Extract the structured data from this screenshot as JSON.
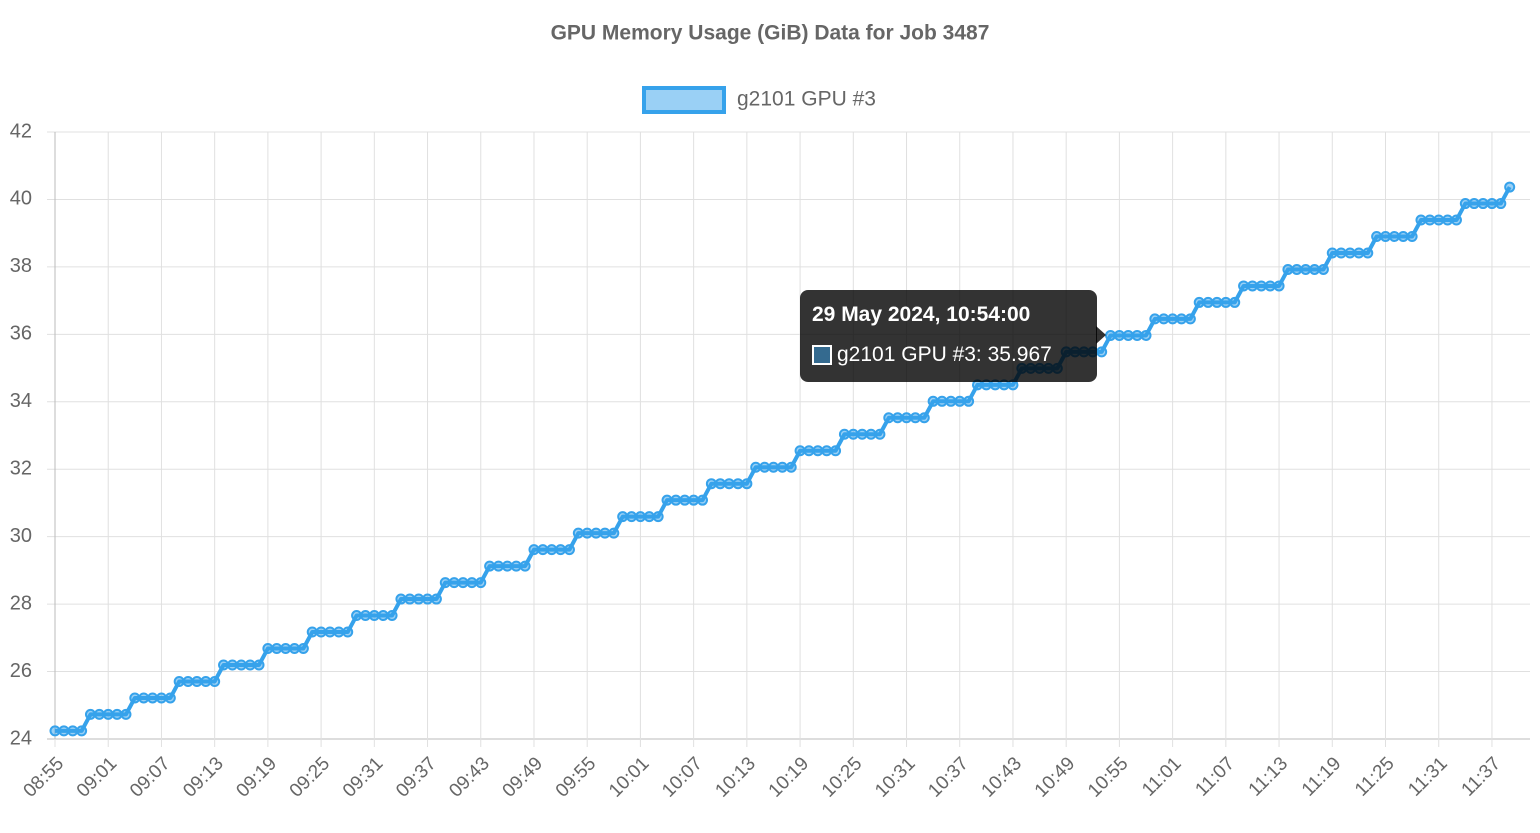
{
  "chart_data": {
    "type": "line",
    "title": "GPU Memory Usage (GiB) Data for Job 3487",
    "categories": [
      "08:55",
      null,
      null,
      null,
      null,
      null,
      "09:01",
      null,
      null,
      null,
      null,
      null,
      "09:07",
      null,
      null,
      null,
      null,
      null,
      "09:13",
      null,
      null,
      null,
      null,
      null,
      "09:19",
      null,
      null,
      null,
      null,
      null,
      "09:25",
      null,
      null,
      null,
      null,
      null,
      "09:31",
      null,
      null,
      null,
      null,
      null,
      "09:37",
      null,
      null,
      null,
      null,
      null,
      "09:43",
      null,
      null,
      null,
      null,
      null,
      "09:49",
      null,
      null,
      null,
      null,
      null,
      "09:55",
      null,
      null,
      null,
      null,
      null,
      "10:01",
      null,
      null,
      null,
      null,
      null,
      "10:07",
      null,
      null,
      null,
      null,
      null,
      "10:13",
      null,
      null,
      null,
      null,
      null,
      "10:19",
      null,
      null,
      null,
      null,
      null,
      "10:25",
      null,
      null,
      null,
      null,
      null,
      "10:31",
      null,
      null,
      null,
      null,
      null,
      "10:37",
      null,
      null,
      null,
      null,
      null,
      "10:43",
      null,
      null,
      null,
      null,
      null,
      "10:49",
      null,
      null,
      null,
      null,
      null,
      "10:55",
      null,
      null,
      null,
      null,
      null,
      "11:01",
      null,
      null,
      null,
      null,
      null,
      "11:07",
      null,
      null,
      null,
      null,
      null,
      "11:13",
      null,
      null,
      null,
      null,
      null,
      "11:19",
      null,
      null,
      null,
      null,
      null,
      "11:25",
      null,
      null,
      null,
      null,
      null,
      "11:31",
      null,
      null,
      null,
      null,
      null,
      "11:37",
      null,
      null
    ],
    "series": [
      {
        "name": "g2101 GPU #3",
        "color": "#36a2eb",
        "values": [
          24.24,
          24.24,
          24.24,
          24.24,
          24.729,
          24.729,
          24.729,
          24.729,
          24.729,
          25.217,
          25.217,
          25.217,
          25.217,
          25.217,
          25.706,
          25.706,
          25.706,
          25.706,
          25.706,
          26.195,
          26.195,
          26.195,
          26.195,
          26.195,
          26.684,
          26.684,
          26.684,
          26.684,
          26.684,
          27.172,
          27.172,
          27.172,
          27.172,
          27.172,
          27.661,
          27.661,
          27.661,
          27.661,
          27.661,
          28.15,
          28.15,
          28.15,
          28.15,
          28.15,
          28.638,
          28.638,
          28.638,
          28.638,
          28.638,
          29.127,
          29.127,
          29.127,
          29.127,
          29.127,
          29.616,
          29.616,
          29.616,
          29.616,
          29.616,
          30.104,
          30.104,
          30.104,
          30.104,
          30.104,
          30.593,
          30.593,
          30.593,
          30.593,
          30.593,
          31.082,
          31.082,
          31.082,
          31.082,
          31.082,
          31.571,
          31.571,
          31.571,
          31.571,
          31.571,
          32.059,
          32.059,
          32.059,
          32.059,
          32.059,
          32.548,
          32.548,
          32.548,
          32.548,
          32.548,
          33.037,
          33.037,
          33.037,
          33.037,
          33.037,
          33.525,
          33.525,
          33.525,
          33.525,
          33.525,
          34.014,
          34.014,
          34.014,
          34.014,
          34.014,
          34.503,
          34.503,
          34.503,
          34.503,
          34.503,
          34.991,
          34.991,
          34.991,
          34.991,
          34.991,
          35.48,
          35.48,
          35.48,
          35.48,
          35.48,
          35.967,
          35.967,
          35.967,
          35.967,
          35.967,
          36.457,
          36.457,
          36.457,
          36.457,
          36.457,
          36.946,
          36.946,
          36.946,
          36.946,
          36.946,
          37.435,
          37.435,
          37.435,
          37.435,
          37.435,
          37.924,
          37.924,
          37.924,
          37.924,
          37.924,
          38.412,
          38.412,
          38.412,
          38.412,
          38.412,
          38.901,
          38.901,
          38.901,
          38.901,
          38.901,
          39.39,
          39.39,
          39.39,
          39.39,
          39.39,
          39.878,
          39.878,
          39.878,
          39.878,
          39.878,
          40.367
        ]
      }
    ],
    "ylim": [
      24,
      42
    ],
    "yticks": [
      24,
      26,
      28,
      30,
      32,
      34,
      36,
      38,
      40,
      42
    ],
    "grid": true,
    "legend": "top",
    "tooltip": {
      "title": "29 May 2024, 10:54:00",
      "label": "g2101 GPU #3: 35.967"
    }
  }
}
